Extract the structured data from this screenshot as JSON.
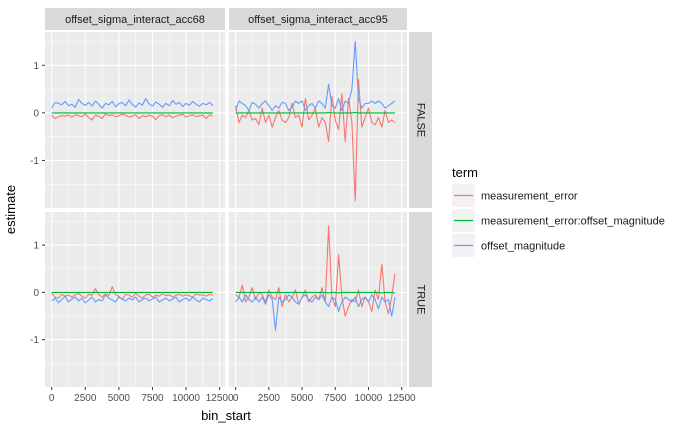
{
  "chart_data": {
    "type": "line",
    "xlabel": "bin_start",
    "ylabel": "estimate",
    "xlim": [
      -500,
      12900
    ],
    "ylim": [
      -2.0,
      1.7
    ],
    "x_ticks": [
      0,
      2500,
      5000,
      7500,
      10000,
      12500
    ],
    "x_tick_labels": [
      "0",
      "2500",
      "5000",
      "7500",
      "10000",
      "12500"
    ],
    "y_ticks": [
      -1,
      0,
      1
    ],
    "y_tick_labels": [
      "-1",
      "0",
      "1"
    ],
    "col_facets": [
      "offset_sigma_interact_acc68",
      "offset_sigma_interact_acc95"
    ],
    "row_facets": [
      "FALSE",
      "TRUE"
    ],
    "legend": {
      "title": "term",
      "position": "right",
      "entries": [
        "measurement_error",
        "measurement_error:offset_magnitude",
        "offset_magnitude"
      ]
    },
    "colors": {
      "measurement_error": "#F8766D",
      "measurement_error:offset_magnitude": "#00BA38",
      "offset_magnitude": "#619CFF",
      "panel_bg": "#EBEBEB",
      "strip_bg": "#D9D9D9",
      "grid": "#FFFFFF"
    },
    "x": [
      0,
      250,
      500,
      750,
      1000,
      1250,
      1500,
      1750,
      2000,
      2250,
      2500,
      2750,
      3000,
      3250,
      3500,
      3750,
      4000,
      4250,
      4500,
      4750,
      5000,
      5250,
      5500,
      5750,
      6000,
      6250,
      6500,
      6750,
      7000,
      7250,
      7500,
      7750,
      8000,
      8250,
      8500,
      8750,
      9000,
      9250,
      9500,
      9750,
      10000,
      10250,
      10500,
      10750,
      11000,
      11250,
      11500,
      11750,
      12000
    ],
    "panels": [
      {
        "col": "offset_sigma_interact_acc68",
        "row": "FALSE",
        "series": [
          {
            "name": "measurement_error",
            "values": [
              -0.05,
              -0.12,
              -0.08,
              -0.06,
              -0.07,
              -0.05,
              -0.09,
              -0.04,
              -0.06,
              -0.08,
              -0.03,
              -0.1,
              -0.15,
              -0.05,
              -0.07,
              -0.12,
              -0.02,
              -0.06,
              -0.04,
              -0.08,
              -0.06,
              -0.03,
              -0.05,
              -0.09,
              -0.07,
              -0.04,
              -0.12,
              -0.06,
              -0.08,
              -0.05,
              -0.07,
              -0.14,
              -0.06,
              -0.04,
              -0.08,
              -0.05,
              -0.1,
              -0.07,
              -0.05,
              -0.03,
              -0.09,
              -0.06,
              -0.04,
              -0.08,
              -0.06,
              -0.05,
              -0.12,
              -0.04,
              -0.07
            ]
          },
          {
            "name": "measurement_error:offset_magnitude",
            "values": [
              0.0,
              0.0,
              0.0,
              0.0,
              0.0,
              0.0,
              0.0,
              0.0,
              0.0,
              0.0,
              0.0,
              0.0,
              0.0,
              0.0,
              0.0,
              0.0,
              0.0,
              0.0,
              0.0,
              0.0,
              0.0,
              0.0,
              0.0,
              0.0,
              0.0,
              0.0,
              0.0,
              0.0,
              0.0,
              0.0,
              0.0,
              0.0,
              0.0,
              0.0,
              0.0,
              0.0,
              0.0,
              0.0,
              0.0,
              0.0,
              0.0,
              0.0,
              0.0,
              0.0,
              0.0,
              0.0,
              0.0,
              0.0,
              0.0
            ]
          },
          {
            "name": "offset_magnitude",
            "values": [
              0.1,
              0.22,
              0.2,
              0.17,
              0.24,
              0.15,
              0.18,
              0.12,
              0.28,
              0.2,
              0.16,
              0.22,
              0.14,
              0.25,
              0.18,
              0.1,
              0.2,
              0.17,
              0.24,
              0.13,
              0.19,
              0.22,
              0.15,
              0.27,
              0.18,
              0.12,
              0.21,
              0.16,
              0.3,
              0.19,
              0.14,
              0.23,
              0.18,
              0.12,
              0.2,
              0.15,
              0.26,
              0.18,
              0.22,
              0.13,
              0.2,
              0.16,
              0.24,
              0.18,
              0.14,
              0.2,
              0.17,
              0.22,
              0.15
            ]
          }
        ]
      },
      {
        "col": "offset_sigma_interact_acc95",
        "row": "FALSE",
        "series": [
          {
            "name": "measurement_error",
            "values": [
              0.15,
              -0.2,
              -0.05,
              -0.1,
              0.05,
              -0.15,
              -0.12,
              -0.25,
              0.1,
              -0.2,
              -0.05,
              -0.3,
              -0.1,
              0.05,
              -0.15,
              -0.2,
              -0.1,
              0.2,
              -0.1,
              -0.05,
              -0.3,
              0.3,
              -0.15,
              -0.05,
              0.1,
              -0.3,
              -0.1,
              -0.2,
              -0.6,
              0.35,
              -0.15,
              -0.35,
              0.4,
              -0.6,
              0.3,
              -0.2,
              -1.85,
              0.7,
              -0.3,
              -0.1,
              0.1,
              -0.2,
              -0.25,
              -0.1,
              -0.3,
              0.05,
              -0.2,
              -0.15,
              -0.2
            ]
          },
          {
            "name": "measurement_error:offset_magnitude",
            "values": [
              0.0,
              0.0,
              0.0,
              0.0,
              0.0,
              0.0,
              0.0,
              0.0,
              0.0,
              0.0,
              0.0,
              0.0,
              0.0,
              0.0,
              0.0,
              0.0,
              0.0,
              0.0,
              0.0,
              0.0,
              0.0,
              0.0,
              0.0,
              0.0,
              0.0,
              0.0,
              0.0,
              0.0,
              0.01,
              0.0,
              0.0,
              0.0,
              0.0,
              0.0,
              0.0,
              0.0,
              0.01,
              0.0,
              0.0,
              0.0,
              0.0,
              0.0,
              0.0,
              0.0,
              0.0,
              0.0,
              0.0,
              0.0,
              0.0
            ]
          },
          {
            "name": "offset_magnitude",
            "values": [
              0.05,
              0.25,
              0.2,
              0.15,
              0.05,
              0.22,
              0.18,
              0.1,
              0.2,
              0.25,
              0.15,
              0.05,
              0.15,
              0.1,
              0.22,
              0.2,
              0.05,
              0.12,
              0.25,
              0.2,
              0.25,
              0.05,
              0.15,
              0.2,
              0.1,
              0.25,
              0.2,
              0.1,
              0.6,
              0.15,
              0.1,
              0.3,
              0.05,
              0.25,
              0.2,
              0.5,
              1.5,
              0.3,
              0.1,
              0.2,
              0.2,
              0.25,
              0.2,
              0.25,
              0.2,
              0.1,
              0.15,
              0.2,
              0.25
            ]
          }
        ]
      },
      {
        "col": "offset_sigma_interact_acc68",
        "row": "TRUE",
        "series": [
          {
            "name": "measurement_error",
            "values": [
              -0.02,
              -0.1,
              -0.12,
              -0.04,
              -0.08,
              -0.06,
              -0.1,
              -0.05,
              -0.02,
              -0.08,
              -0.12,
              -0.04,
              -0.06,
              0.08,
              -0.05,
              -0.1,
              -0.03,
              -0.07,
              0.12,
              -0.05,
              -0.08,
              -0.15,
              -0.04,
              -0.06,
              -0.1,
              -0.02,
              -0.08,
              -0.12,
              -0.05,
              -0.04,
              -0.1,
              -0.06,
              -0.08,
              -0.03,
              -0.07,
              -0.05,
              -0.1,
              -0.06,
              -0.04,
              -0.08,
              -0.05,
              -0.07,
              -0.1,
              -0.03,
              -0.06,
              -0.05,
              -0.08,
              -0.04,
              -0.06
            ]
          },
          {
            "name": "measurement_error:offset_magnitude",
            "values": [
              0.0,
              0.0,
              0.0,
              0.0,
              0.0,
              0.0,
              0.0,
              0.0,
              0.0,
              0.0,
              0.0,
              0.0,
              0.0,
              0.0,
              0.0,
              0.0,
              0.0,
              0.0,
              0.0,
              0.0,
              0.0,
              0.0,
              0.0,
              0.0,
              0.0,
              0.0,
              0.0,
              0.0,
              0.0,
              0.0,
              0.0,
              0.0,
              0.0,
              0.0,
              0.0,
              0.0,
              0.0,
              0.0,
              0.0,
              0.0,
              0.0,
              0.0,
              0.0,
              0.0,
              0.0,
              0.0,
              0.0,
              0.0,
              0.0
            ]
          },
          {
            "name": "offset_magnitude",
            "values": [
              -0.18,
              -0.12,
              -0.22,
              -0.15,
              -0.08,
              -0.2,
              -0.14,
              -0.1,
              -0.18,
              -0.12,
              -0.22,
              -0.16,
              -0.1,
              -0.2,
              -0.15,
              -0.18,
              -0.05,
              -0.12,
              -0.16,
              -0.2,
              -0.1,
              -0.14,
              -0.18,
              -0.12,
              -0.16,
              -0.1,
              -0.2,
              -0.15,
              -0.12,
              -0.18,
              -0.14,
              -0.1,
              -0.2,
              -0.16,
              -0.12,
              -0.18,
              -0.14,
              -0.1,
              -0.2,
              -0.15,
              -0.12,
              -0.18,
              -0.1,
              -0.16,
              -0.2,
              -0.12,
              -0.15,
              -0.18,
              -0.13
            ]
          }
        ]
      },
      {
        "col": "offset_sigma_interact_acc95",
        "row": "TRUE",
        "series": [
          {
            "name": "measurement_error",
            "values": [
              -0.05,
              -0.1,
              0.15,
              -0.2,
              -0.1,
              0.1,
              -0.15,
              0.0,
              -0.05,
              -0.2,
              0.05,
              -0.1,
              -0.15,
              0.1,
              -0.3,
              -0.05,
              -0.2,
              -0.1,
              0.05,
              -0.25,
              -0.1,
              0.05,
              -0.2,
              -0.1,
              -0.05,
              -0.15,
              0.1,
              -0.2,
              1.4,
              -0.1,
              -0.3,
              0.8,
              -0.1,
              -0.5,
              -0.3,
              -0.15,
              -0.2,
              0.05,
              -0.3,
              -0.1,
              -0.2,
              -0.4,
              0.05,
              -0.15,
              0.6,
              -0.2,
              -0.45,
              -0.1,
              0.4
            ]
          },
          {
            "name": "measurement_error:offset_magnitude",
            "values": [
              0.0,
              0.0,
              0.0,
              0.0,
              0.0,
              0.0,
              0.0,
              0.0,
              0.0,
              0.0,
              0.0,
              0.0,
              0.0,
              0.0,
              0.0,
              0.0,
              0.0,
              0.0,
              0.0,
              0.0,
              0.0,
              0.0,
              0.0,
              0.0,
              0.0,
              0.0,
              0.0,
              0.0,
              -0.01,
              0.0,
              0.0,
              -0.01,
              0.0,
              0.0,
              0.0,
              0.0,
              0.0,
              0.0,
              0.0,
              0.0,
              0.0,
              0.0,
              0.0,
              0.0,
              -0.01,
              0.0,
              0.0,
              0.0,
              -0.01
            ]
          },
          {
            "name": "offset_magnitude",
            "values": [
              -0.2,
              -0.1,
              -0.2,
              -0.05,
              -0.15,
              -0.2,
              -0.1,
              -0.2,
              -0.1,
              -0.25,
              -0.05,
              -0.15,
              -0.8,
              -0.1,
              -0.2,
              -0.15,
              -0.05,
              -0.1,
              -0.2,
              -0.25,
              -0.1,
              -0.05,
              -0.15,
              -0.2,
              -0.1,
              -0.15,
              -0.05,
              -0.2,
              -0.3,
              -0.1,
              -0.15,
              -0.4,
              -0.2,
              -0.1,
              -0.15,
              -0.2,
              -0.1,
              -0.3,
              -0.15,
              -0.1,
              -0.2,
              -0.05,
              -0.15,
              -0.35,
              -0.1,
              -0.2,
              -0.15,
              -0.5,
              -0.1
            ]
          }
        ]
      }
    ]
  }
}
